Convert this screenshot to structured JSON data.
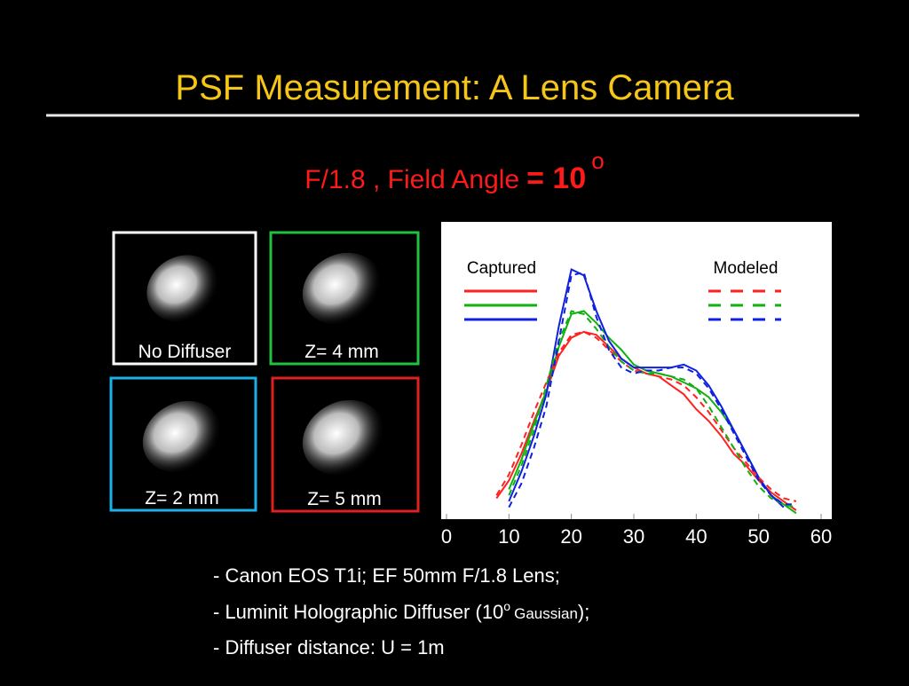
{
  "slide": {
    "title": "PSF Measurement: A Lens Camera",
    "subtitle": {
      "text": "F/1.8 , Field Angle",
      "emphasis": "= 10",
      "superscript": "o"
    },
    "panels": [
      "No Diffuser",
      "Z= 4 mm",
      "Z= 2 mm",
      "Z= 5 mm"
    ],
    "bullets": [
      {
        "text": "- Canon EOS T1i; EF 50mm F/1.8 Lens;"
      },
      {
        "text": "- Luminit Holographic Diffuser (10",
        "superscript": "o",
        "small": "Gaussian",
        "tail": ");"
      },
      {
        "text": "- Diffuser distance: U = 1m"
      }
    ]
  },
  "chart_data": {
    "type": "line",
    "x": [
      8,
      10,
      12,
      14,
      16,
      18,
      20,
      22,
      24,
      26,
      28,
      30,
      32,
      34,
      36,
      38,
      40,
      42,
      44,
      46,
      48,
      50,
      52,
      54,
      56
    ],
    "xlim": [
      0,
      60
    ],
    "xticks": [
      0,
      10,
      20,
      30,
      40,
      50,
      60
    ],
    "ylim": [
      0,
      1
    ],
    "series_groups": [
      {
        "name": "Captured",
        "line_style": "solid",
        "series": [
          {
            "color": "#ff2020",
            "values": [
              0.07,
              0.13,
              0.22,
              0.33,
              0.43,
              0.55,
              0.61,
              0.63,
              0.62,
              0.58,
              0.54,
              0.51,
              0.49,
              0.48,
              0.45,
              0.42,
              0.37,
              0.33,
              0.28,
              0.22,
              0.18,
              0.13,
              0.09,
              0.06,
              0.03
            ]
          },
          {
            "color": "#10b010",
            "values": [
              null,
              0.1,
              0.2,
              0.32,
              0.43,
              0.58,
              0.69,
              0.7,
              0.66,
              0.61,
              0.57,
              0.52,
              0.5,
              0.49,
              0.48,
              0.46,
              0.44,
              0.41,
              0.36,
              0.3,
              0.22,
              0.14,
              0.08,
              0.05,
              0.02
            ]
          },
          {
            "color": "#1020e0",
            "values": [
              null,
              0.06,
              0.16,
              0.28,
              0.42,
              0.65,
              0.84,
              0.82,
              0.7,
              0.6,
              0.54,
              0.51,
              0.51,
              0.51,
              0.51,
              0.52,
              0.5,
              0.45,
              0.38,
              0.3,
              0.22,
              0.14,
              0.08,
              0.04,
              null
            ]
          }
        ]
      },
      {
        "name": "Modeled",
        "line_style": "dashed",
        "series": [
          {
            "color": "#ff2020",
            "values": [
              0.08,
              0.15,
              0.25,
              0.36,
              0.46,
              0.56,
              0.62,
              0.63,
              0.61,
              0.57,
              0.53,
              0.5,
              0.49,
              0.48,
              0.47,
              0.45,
              0.41,
              0.36,
              0.3,
              0.24,
              0.19,
              0.14,
              0.1,
              0.07,
              0.06
            ]
          },
          {
            "color": "#10b010",
            "values": [
              null,
              0.08,
              0.18,
              0.3,
              0.45,
              0.6,
              0.7,
              0.69,
              0.64,
              0.58,
              0.53,
              0.5,
              0.49,
              0.49,
              0.48,
              0.47,
              0.44,
              0.38,
              0.31,
              0.24,
              0.17,
              0.11,
              0.07,
              0.05,
              0.04
            ]
          },
          {
            "color": "#1020e0",
            "values": [
              null,
              0.04,
              0.12,
              0.24,
              0.38,
              0.6,
              0.82,
              0.83,
              0.68,
              0.57,
              0.51,
              0.49,
              0.5,
              0.5,
              0.51,
              0.51,
              0.49,
              0.44,
              0.37,
              0.29,
              0.21,
              0.13,
              0.08,
              0.05,
              0.05
            ]
          }
        ]
      }
    ]
  }
}
